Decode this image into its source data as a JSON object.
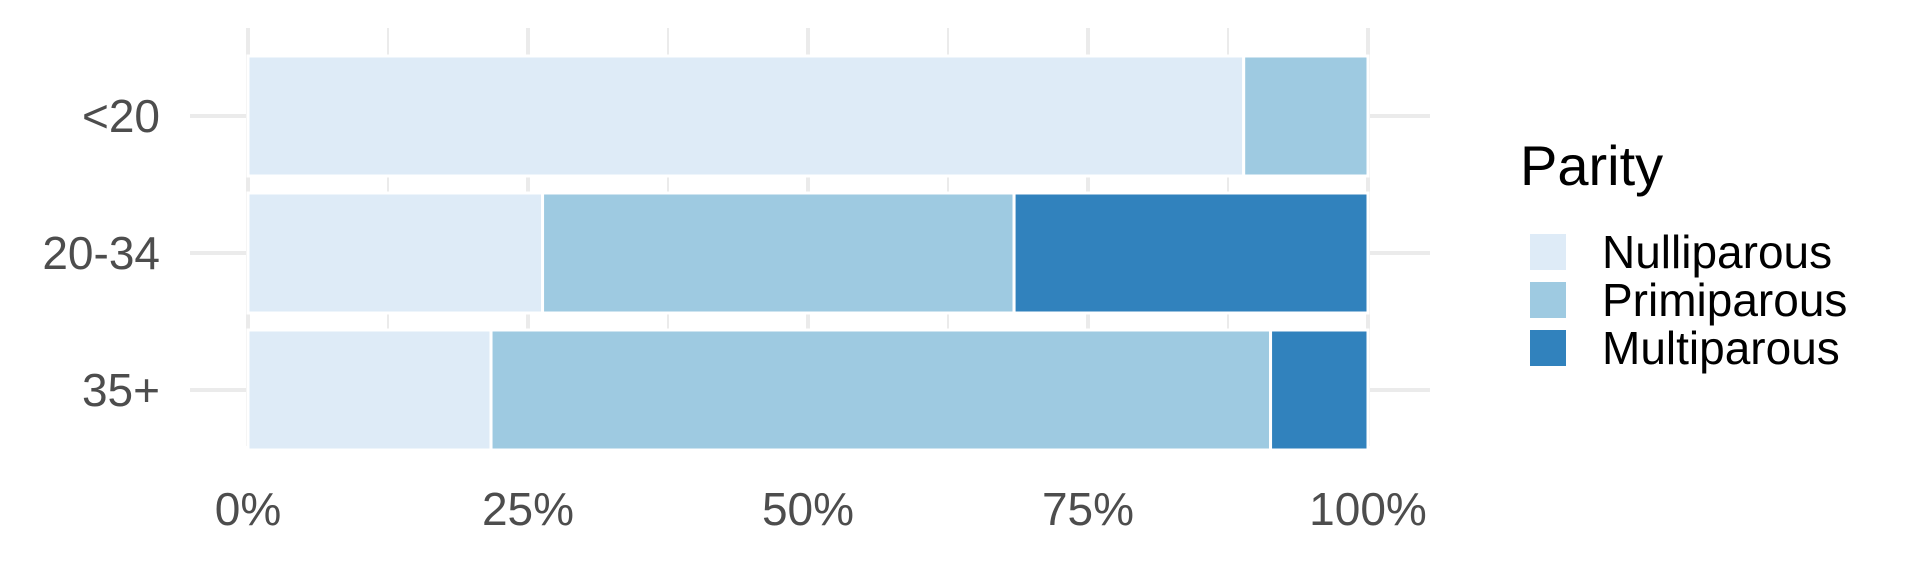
{
  "chart_data": {
    "type": "bar",
    "orientation": "horizontal",
    "stacked": true,
    "percent_stacked": true,
    "categories": [
      "<20",
      "20-34",
      "35+"
    ],
    "series": [
      {
        "name": "Nulliparous",
        "color": "#deebf7",
        "values": [
          88.9,
          26.3,
          21.7
        ]
      },
      {
        "name": "Primiparous",
        "color": "#9ecae1",
        "values": [
          11.1,
          42.1,
          69.6
        ]
      },
      {
        "name": "Multiparous",
        "color": "#3182bd",
        "values": [
          0,
          31.6,
          8.7
        ]
      }
    ],
    "x_ticks": [
      "0%",
      "25%",
      "50%",
      "75%",
      "100%"
    ],
    "x_tick_values": [
      0,
      25,
      50,
      75,
      100
    ],
    "xlim": [
      0,
      100
    ],
    "xlabel": "",
    "ylabel": "",
    "title": "",
    "grid": true,
    "legend": {
      "title": "Parity",
      "position": "right"
    }
  }
}
